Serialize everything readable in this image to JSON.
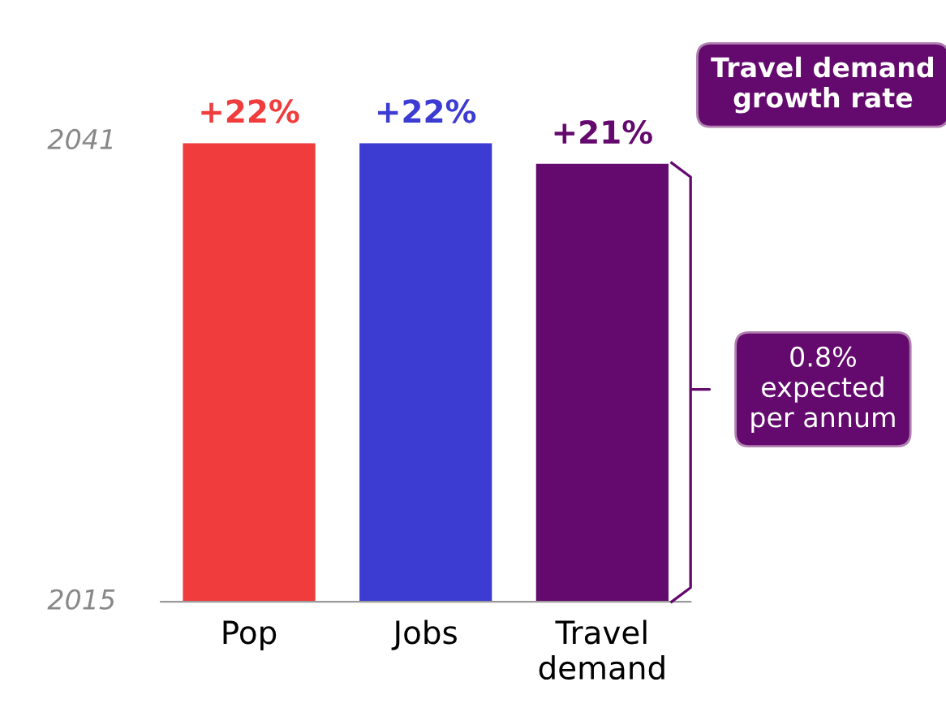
{
  "chart_data": {
    "type": "bar",
    "categories": [
      "Pop",
      "Jobs",
      "Travel\ndemand"
    ],
    "values": [
      22,
      22,
      21
    ],
    "colors": [
      "#f03c3c",
      "#3c3cd2",
      "#640a6e"
    ],
    "value_labels": [
      "+22%",
      "+22%",
      "+21%"
    ],
    "annotations": [
      "2041",
      "2015",
      "Travel demand\ngrowth rate",
      "0.8%\nexpected\nper annum"
    ],
    "grid": false,
    "legend": false
  }
}
